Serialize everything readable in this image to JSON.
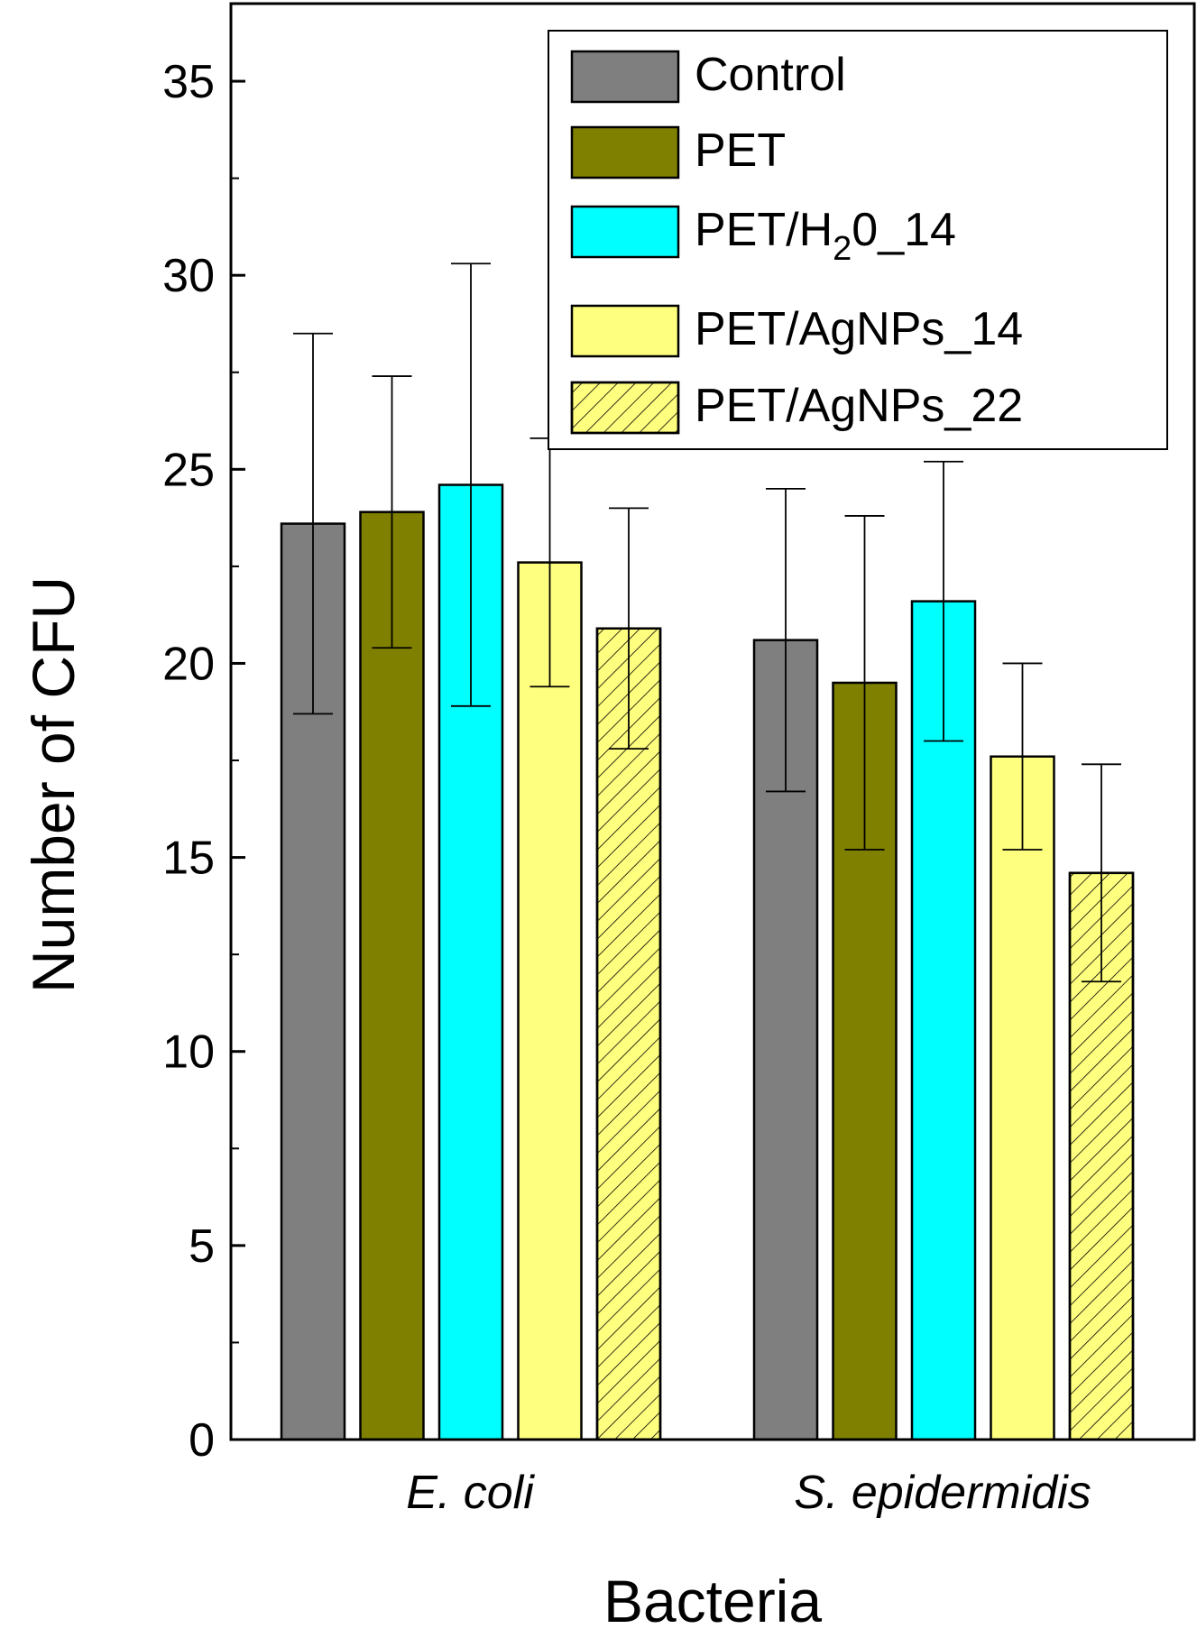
{
  "chart_data": {
    "type": "bar",
    "xlabel": "Bacteria",
    "ylabel": "Number of CFU",
    "ylim": [
      0,
      37
    ],
    "yticks": [
      0,
      5,
      10,
      15,
      20,
      25,
      30,
      35
    ],
    "ytick_labels": [
      "0",
      "5",
      "10",
      "15",
      "20",
      "25",
      "30",
      "35"
    ],
    "categories": [
      "E. coli",
      "S. epidermidis"
    ],
    "series": [
      {
        "name": "Control",
        "legend_main": "Control",
        "legend_sub": "",
        "legend_tail": "",
        "values": [
          23.6,
          20.6
        ],
        "errors": [
          4.9,
          3.9
        ],
        "color": "#7f7f7f",
        "hatch": false
      },
      {
        "name": "PET",
        "legend_main": "PET",
        "legend_sub": "",
        "legend_tail": "",
        "values": [
          23.9,
          19.5
        ],
        "errors": [
          3.5,
          4.3
        ],
        "color": "#7f7f00",
        "hatch": false
      },
      {
        "name": "PET/H20_14",
        "legend_main": "PET/H",
        "legend_sub": "2",
        "legend_tail": "0_14",
        "values": [
          24.6,
          21.6
        ],
        "errors": [
          5.7,
          3.6
        ],
        "color": "#00ffff",
        "hatch": false
      },
      {
        "name": "PET/AgNPs_14",
        "legend_main": "PET/AgNPs_14",
        "legend_sub": "",
        "legend_tail": "",
        "values": [
          22.6,
          17.6
        ],
        "errors": [
          3.2,
          2.4
        ],
        "color": "#ffff7f",
        "hatch": false
      },
      {
        "name": "PET/AgNPs_22",
        "legend_main": "PET/AgNPs_22",
        "legend_sub": "",
        "legend_tail": "",
        "values": [
          20.9,
          14.6
        ],
        "errors": [
          3.1,
          2.8
        ],
        "color": "#ffff7f",
        "hatch": true
      }
    ],
    "legend_position": "top-right",
    "grid": false
  }
}
